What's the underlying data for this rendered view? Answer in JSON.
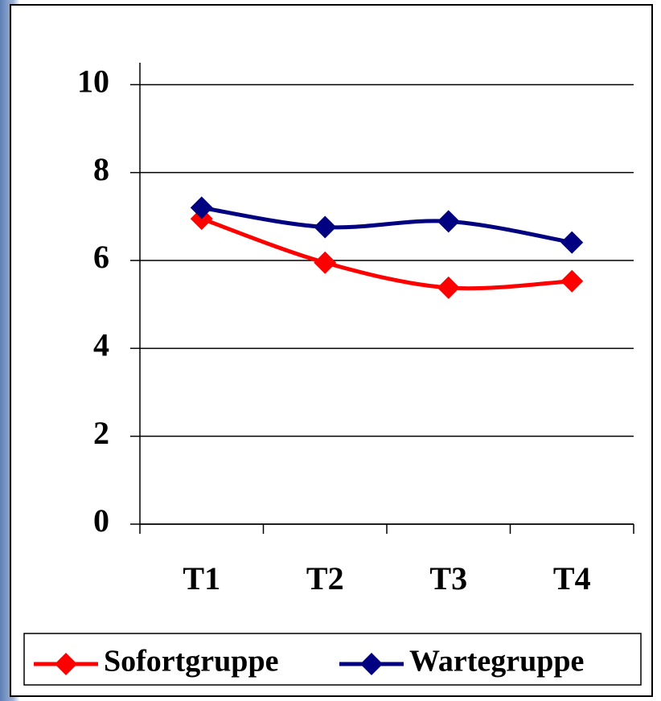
{
  "chart_data": {
    "type": "line",
    "categories": [
      "T1",
      "T2",
      "T3",
      "T4"
    ],
    "series": [
      {
        "name": "Sofortgruppe",
        "color": "#ff0000",
        "values": [
          6.95,
          5.95,
          5.38,
          5.53
        ]
      },
      {
        "name": "Wartegruppe",
        "color": "#000080",
        "values": [
          7.2,
          6.76,
          6.89,
          6.41
        ]
      }
    ],
    "ylim": [
      0,
      10.5
    ],
    "yticks": [
      0,
      2,
      4,
      6,
      8,
      10
    ],
    "grid": true,
    "legend": "bottom"
  }
}
